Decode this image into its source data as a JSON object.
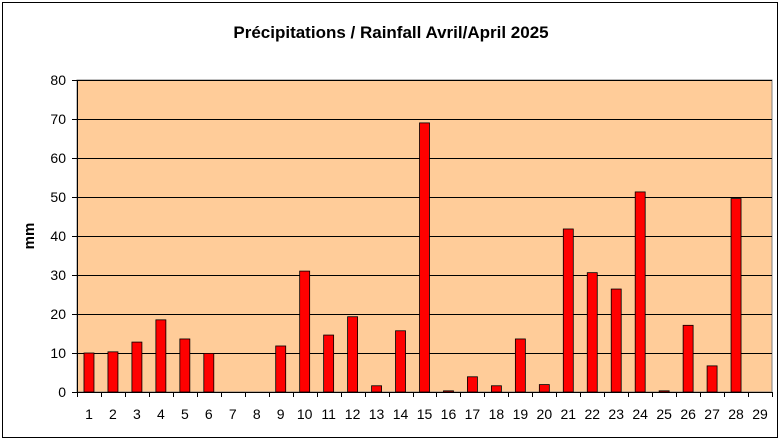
{
  "chart_data": {
    "type": "bar",
    "title": "Précipitations / Rainfall Avril/April 2025",
    "xlabel": "",
    "ylabel": "mm",
    "ylim": [
      0,
      80
    ],
    "yticks": [
      0,
      10,
      20,
      30,
      40,
      50,
      60,
      70,
      80
    ],
    "categories": [
      "1",
      "2",
      "3",
      "4",
      "5",
      "6",
      "7",
      "8",
      "9",
      "10",
      "11",
      "12",
      "13",
      "14",
      "15",
      "16",
      "17",
      "18",
      "19",
      "20",
      "21",
      "22",
      "23",
      "24",
      "25",
      "26",
      "27",
      "28",
      "29"
    ],
    "values": [
      10,
      10.3,
      12.8,
      18.5,
      13.6,
      9.9,
      0,
      0,
      11.8,
      31,
      14.6,
      19.3,
      1.6,
      15.7,
      69,
      0.3,
      3.9,
      1.6,
      13.6,
      1.9,
      41.8,
      30.6,
      26.4,
      51.3,
      0.3,
      17.1,
      6.7,
      49.6,
      0
    ],
    "grid": true,
    "legend": "none",
    "colors": {
      "plot_background": "#FFCC99",
      "bar_fill": "#FF0000",
      "bar_stroke": "#000000",
      "gridline": "#000000"
    }
  }
}
